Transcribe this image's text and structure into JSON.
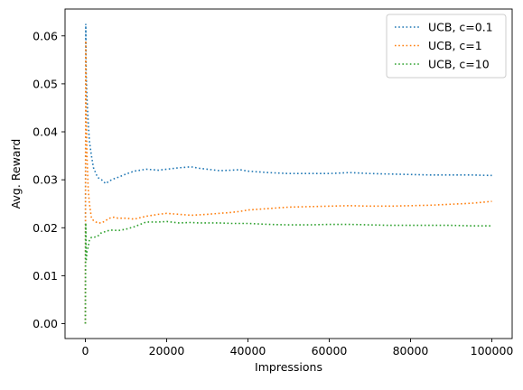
{
  "chart_data": {
    "type": "line",
    "title": "",
    "xlabel": "Impressions",
    "ylabel": "Avg. Reward",
    "xlim": [
      -5000,
      105000
    ],
    "ylim": [
      -0.0031,
      0.0656
    ],
    "xticks": [
      0,
      20000,
      40000,
      60000,
      80000,
      100000
    ],
    "xtick_labels": [
      "0",
      "20000",
      "40000",
      "60000",
      "80000",
      "100000"
    ],
    "yticks": [
      0.0,
      0.01,
      0.02,
      0.03,
      0.04,
      0.05,
      0.06
    ],
    "ytick_labels": [
      "0.00",
      "0.01",
      "0.02",
      "0.03",
      "0.04",
      "0.05",
      "0.06"
    ],
    "grid": false,
    "legend_position": "top-right",
    "line_style": "dotted",
    "series": [
      {
        "name": "UCB, c=0.1",
        "color": "#1f77b4",
        "x": [
          0,
          100,
          200,
          400,
          700,
          1000,
          1500,
          2000,
          3000,
          4000,
          5000,
          6000,
          7000,
          8000,
          10000,
          12000,
          15000,
          18000,
          20000,
          23000,
          26000,
          28000,
          30000,
          33000,
          36000,
          38000,
          40000,
          45000,
          50000,
          55000,
          60000,
          65000,
          70000,
          75000,
          80000,
          85000,
          90000,
          95000,
          100000
        ],
        "y": [
          0.0,
          0.0625,
          0.052,
          0.047,
          0.042,
          0.038,
          0.035,
          0.0325,
          0.0305,
          0.03,
          0.0292,
          0.0298,
          0.0302,
          0.0305,
          0.0312,
          0.0318,
          0.0322,
          0.032,
          0.0322,
          0.0325,
          0.0327,
          0.0324,
          0.0322,
          0.0319,
          0.032,
          0.0321,
          0.0318,
          0.0315,
          0.0313,
          0.0313,
          0.0313,
          0.0315,
          0.0313,
          0.0312,
          0.0311,
          0.031,
          0.031,
          0.031,
          0.0309
        ]
      },
      {
        "name": "UCB, c=1",
        "color": "#ff7f0e",
        "x": [
          0,
          100,
          200,
          400,
          700,
          1000,
          1500,
          2000,
          3000,
          4000,
          5000,
          6000,
          7000,
          8000,
          10000,
          12000,
          15000,
          18000,
          20000,
          23000,
          26000,
          28000,
          30000,
          33000,
          36000,
          38000,
          40000,
          45000,
          50000,
          55000,
          60000,
          65000,
          70000,
          75000,
          80000,
          85000,
          90000,
          95000,
          100000
        ],
        "y": [
          0.0,
          0.059,
          0.045,
          0.035,
          0.028,
          0.025,
          0.022,
          0.0215,
          0.021,
          0.021,
          0.0215,
          0.022,
          0.0222,
          0.022,
          0.022,
          0.0218,
          0.0224,
          0.0228,
          0.023,
          0.0228,
          0.0226,
          0.0227,
          0.0228,
          0.023,
          0.0232,
          0.0234,
          0.0237,
          0.024,
          0.0243,
          0.0244,
          0.0245,
          0.0246,
          0.0245,
          0.0245,
          0.0246,
          0.0247,
          0.0249,
          0.0251,
          0.0255
        ]
      },
      {
        "name": "UCB, c=10",
        "color": "#2ca02c",
        "x": [
          0,
          100,
          200,
          400,
          700,
          1000,
          1500,
          2000,
          3000,
          4000,
          5000,
          6000,
          7000,
          8000,
          10000,
          12000,
          15000,
          18000,
          20000,
          23000,
          26000,
          28000,
          30000,
          33000,
          36000,
          38000,
          40000,
          45000,
          50000,
          55000,
          60000,
          65000,
          70000,
          75000,
          80000,
          85000,
          90000,
          95000,
          100000
        ],
        "y": [
          0.0,
          0.021,
          0.013,
          0.015,
          0.016,
          0.0175,
          0.018,
          0.018,
          0.0182,
          0.019,
          0.0192,
          0.0195,
          0.0195,
          0.0194,
          0.0197,
          0.0202,
          0.0212,
          0.0212,
          0.0213,
          0.021,
          0.0211,
          0.021,
          0.021,
          0.021,
          0.0209,
          0.0209,
          0.0209,
          0.0207,
          0.0206,
          0.0206,
          0.0207,
          0.0207,
          0.0206,
          0.0205,
          0.0205,
          0.0205,
          0.0205,
          0.0204,
          0.0204
        ]
      }
    ]
  }
}
